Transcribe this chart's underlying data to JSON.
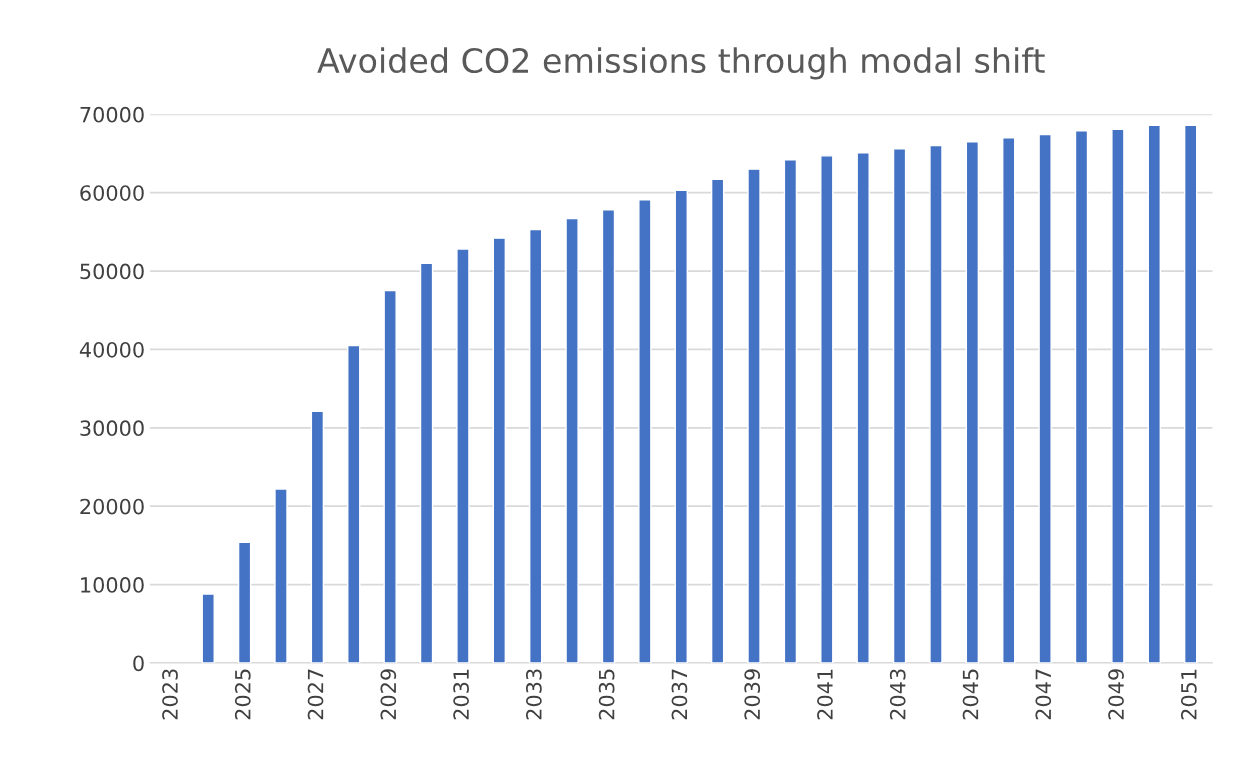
{
  "chart_data": {
    "type": "bar",
    "title": "Avoided CO2 emissions through modal shift",
    "categories": [
      "2023",
      null,
      "2025",
      null,
      "2027",
      null,
      "2029",
      null,
      "2031",
      null,
      "2033",
      null,
      "2035",
      null,
      "2037",
      null,
      "2039",
      null,
      "2041",
      null,
      "2043",
      null,
      "2045",
      null,
      "2047",
      null,
      "2049",
      null,
      "2051"
    ],
    "values": [
      null,
      8800,
      15400,
      22200,
      32100,
      40500,
      47500,
      51000,
      52800,
      54200,
      55300,
      56700,
      57800,
      59100,
      60300,
      61700,
      63000,
      64200,
      64700,
      65100,
      65600,
      66000,
      66500,
      67000,
      67400,
      67900,
      68100,
      68600,
      68600
    ],
    "color": "#4472c4",
    "ylim": [
      0,
      70000
    ],
    "yticks": [
      0,
      10000,
      20000,
      30000,
      40000,
      50000,
      60000,
      70000
    ],
    "grid": "y"
  }
}
